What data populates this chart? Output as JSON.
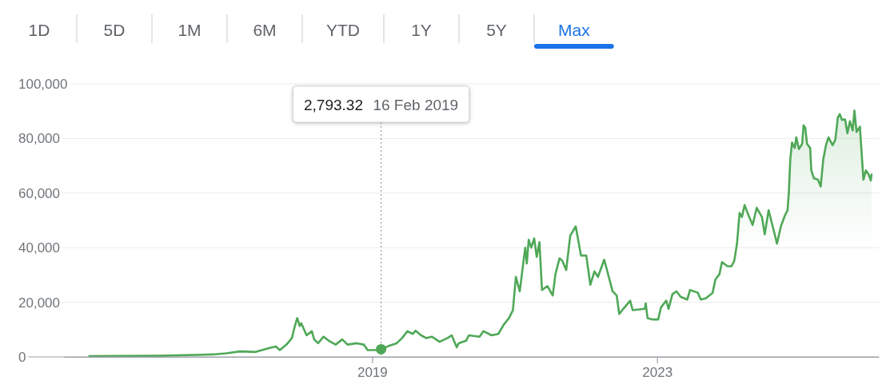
{
  "chart_data": {
    "type": "area",
    "x": [
      "2015-01-12",
      "2016-01-09",
      "2016-10-08",
      "2016-12-15",
      "2017-02-23",
      "2017-05-14",
      "2017-07-21",
      "2017-08-25",
      "2017-09-15",
      "2017-10-19",
      "2017-11-16",
      "2017-11-29",
      "2017-12-13",
      "2017-12-26",
      "2018-01-03",
      "2018-01-30",
      "2018-02-26",
      "2018-03-10",
      "2018-03-30",
      "2018-04-27",
      "2018-05-24",
      "2018-06-28",
      "2018-08-01",
      "2018-08-28",
      "2018-10-15",
      "2018-11-19",
      "2018-12-09",
      "2019-01-20",
      "2019-02-16",
      "2019-03-27",
      "2019-05-07",
      "2019-06-04",
      "2019-07-01",
      "2019-07-28",
      "2019-08-12",
      "2019-09-09",
      "2019-10-05",
      "2019-11-03",
      "2019-12-13",
      "2020-01-23",
      "2020-02-13",
      "2020-03-10",
      "2020-03-20",
      "2020-04-27",
      "2020-05-11",
      "2020-07-05",
      "2020-07-25",
      "2020-09-05",
      "2020-10-09",
      "2020-11-06",
      "2020-12-03",
      "2020-12-23",
      "2021-01-07",
      "2021-01-27",
      "2021-02-24",
      "2021-03-04",
      "2021-03-14",
      "2021-03-27",
      "2021-04-11",
      "2021-04-24",
      "2021-05-08",
      "2021-05-21",
      "2021-06-18",
      "2021-07-15",
      "2021-07-29",
      "2021-08-19",
      "2021-09-02",
      "2021-09-22",
      "2021-10-13",
      "2021-11-10",
      "2021-12-07",
      "2022-01-03",
      "2022-01-24",
      "2022-02-14",
      "2022-03-04",
      "2022-04-05",
      "2022-04-21",
      "2022-05-18",
      "2022-06-08",
      "2022-06-21",
      "2022-07-12",
      "2022-08-16",
      "2022-08-29",
      "2022-10-30",
      "2022-11-04",
      "2022-11-13",
      "2022-12-10",
      "2023-01-07",
      "2023-01-21",
      "2023-02-17",
      "2023-03-01",
      "2023-03-21",
      "2023-04-11",
      "2023-05-02",
      "2023-06-05",
      "2023-06-19",
      "2023-07-29",
      "2023-08-13",
      "2023-09-09",
      "2023-10-13",
      "2023-10-27",
      "2023-11-17",
      "2023-11-30",
      "2023-12-28",
      "2024-01-18",
      "2024-02-01",
      "2024-02-15",
      "2024-02-28",
      "2024-03-11",
      "2024-03-25",
      "2024-04-15",
      "2024-05-05",
      "2024-05-26",
      "2024-06-22",
      "2024-07-06",
      "2024-07-26",
      "2024-08-16",
      "2024-09-07",
      "2024-09-27",
      "2024-10-17",
      "2024-10-31",
      "2024-11-07",
      "2024-11-14",
      "2024-11-23",
      "2024-12-07",
      "2024-12-15",
      "2024-12-28",
      "2025-01-14",
      "2025-01-21",
      "2025-01-30",
      "2025-02-08",
      "2025-02-24",
      "2025-03-02",
      "2025-03-15",
      "2025-04-05",
      "2025-04-19",
      "2025-05-02",
      "2025-05-16",
      "2025-05-29",
      "2025-06-19",
      "2025-07-03",
      "2025-07-16",
      "2025-07-26",
      "2025-08-06",
      "2025-08-22",
      "2025-09-03",
      "2025-09-16",
      "2025-09-30",
      "2025-10-09",
      "2025-10-20",
      "2025-11-06",
      "2025-11-24",
      "2025-12-07",
      "2025-12-21",
      "2026-01-01",
      "2026-01-05"
    ],
    "series": [
      {
        "color": "#4fa857",
        "values": [
          300,
          400,
          900,
          1300,
          2000,
          1800,
          3200,
          3800,
          2500,
          4500,
          6900,
          10800,
          14200,
          11300,
          12300,
          7900,
          9400,
          6400,
          5000,
          7400,
          5900,
          4500,
          6400,
          4500,
          5000,
          4500,
          2500,
          2500,
          2793.32,
          4000,
          5000,
          6900,
          9400,
          8400,
          9600,
          7900,
          6900,
          7400,
          5500,
          6900,
          7900,
          3500,
          5000,
          5900,
          7900,
          7400,
          9400,
          7900,
          8400,
          11800,
          14200,
          17100,
          29300,
          24000,
          40000,
          34200,
          42900,
          40000,
          43400,
          36600,
          42000,
          24500,
          25900,
          22500,
          30300,
          36100,
          35200,
          31800,
          44400,
          47800,
          37100,
          37100,
          26400,
          31300,
          29300,
          35600,
          31300,
          24000,
          22500,
          15700,
          17600,
          20600,
          17100,
          17600,
          19600,
          14200,
          13700,
          13700,
          18100,
          20600,
          17600,
          23000,
          24000,
          22000,
          21000,
          24500,
          23500,
          21000,
          21500,
          23500,
          28300,
          30300,
          34700,
          33200,
          33200,
          35200,
          41500,
          52700,
          51200,
          55600,
          51700,
          48300,
          54600,
          51200,
          44900,
          53700,
          47800,
          41500,
          47800,
          51700,
          53700,
          60500,
          72200,
          78500,
          76500,
          80400,
          76100,
          78000,
          84800,
          83900,
          78000,
          76500,
          68300,
          65400,
          64900,
          62400,
          72200,
          77500,
          80400,
          77500,
          79500,
          87700,
          88900,
          86800,
          87000,
          81900,
          86300,
          82900,
          90200,
          82400,
          84300,
          64900,
          68300,
          66800,
          64600,
          66800
        ]
      },
      {
        "type": "scatter",
        "x": [
          "2019-02-16"
        ],
        "values": [
          2793.32
        ],
        "color": "#4fa857",
        "marker": "circle"
      }
    ],
    "xlim": [
      "2014-09-04",
      "2026-02-11"
    ],
    "xticks": [
      "2019",
      "2023"
    ],
    "ylim": [
      0,
      100000
    ],
    "yticks": [
      0,
      {
        "value": 20000,
        "label": "20,000"
      },
      {
        "value": 40000,
        "label": "40,000"
      },
      {
        "value": 60000,
        "label": "60,000"
      },
      {
        "value": 80000,
        "label": "80,000"
      },
      {
        "value": 100000,
        "label": "100,000"
      }
    ],
    "grid": "y",
    "ref_lines": [
      {
        "axis": "x",
        "value": "2019-02-16",
        "color": "#9aa0a6",
        "line_style": "dotted"
      }
    ],
    "annotations": [
      "1D",
      "5D",
      "1M",
      "6M",
      "YTD",
      "1Y",
      "5Y",
      "Max",
      "2,793.32",
      "16 Feb 2019"
    ]
  }
}
